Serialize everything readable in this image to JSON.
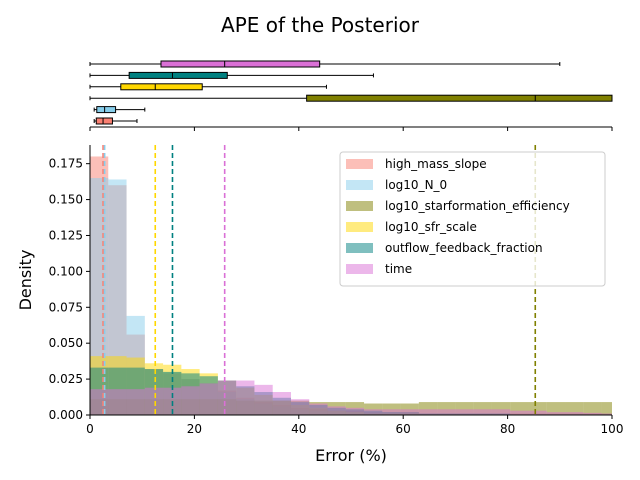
{
  "chart_data": {
    "type": "histogram",
    "title": "APE of the Posterior",
    "xlabel": "Error (%)",
    "ylabel": "Density",
    "xlim": [
      0,
      100
    ],
    "ylim": [
      0,
      0.188
    ],
    "grid": false,
    "legend_position": "top-right",
    "bin_width": 3.5,
    "xticks": [
      "0",
      "20",
      "40",
      "60",
      "80",
      "100"
    ],
    "yticks": [
      "0.000",
      "0.025",
      "0.050",
      "0.075",
      "0.100",
      "0.125",
      "0.150",
      "0.175"
    ],
    "series": [
      {
        "name": "high_mass_slope",
        "color": "#fa8072",
        "median": 2.5,
        "box": {
          "whisker_low": 0.8,
          "q1": 1.2,
          "median": 2.5,
          "q3": 4.3,
          "whisker_high": 9.0
        },
        "density": [
          0.18,
          0.16,
          0.056,
          0.032,
          0.029,
          0.025,
          0.022,
          0.017,
          0.012,
          0.009,
          0.007,
          0.005,
          0.004,
          0.003,
          0.003,
          0.002,
          0.002,
          0.002,
          0.001,
          0.001,
          0.001,
          0.001,
          0.001,
          0.001,
          0.001,
          0.001,
          0.001,
          0.001,
          0.001
        ]
      },
      {
        "name": "log10_N_0",
        "color": "#87ceeb",
        "median": 2.8,
        "box": {
          "whisker_low": 0.8,
          "q1": 1.3,
          "median": 2.8,
          "q3": 4.9,
          "whisker_high": 10.5
        },
        "density": [
          0.165,
          0.164,
          0.069,
          0.032,
          0.03,
          0.025,
          0.022,
          0.016,
          0.011,
          0.008,
          0.006,
          0.004,
          0.003,
          0.003,
          0.002,
          0.002,
          0.002,
          0.001,
          0.001,
          0.001,
          0.001,
          0.001,
          0.001,
          0.001,
          0.001,
          0.001,
          0.001,
          0.001,
          0.001
        ]
      },
      {
        "name": "log10_starformation_efficiency",
        "color": "#808000",
        "median": 85.3,
        "box": {
          "whisker_low": 0.0,
          "q1": 41.5,
          "median": 85.3,
          "q3": 100.0,
          "whisker_high": 100.0
        },
        "density": [
          0.011,
          0.011,
          0.011,
          0.011,
          0.011,
          0.011,
          0.011,
          0.011,
          0.01,
          0.01,
          0.01,
          0.01,
          0.009,
          0.009,
          0.009,
          0.008,
          0.008,
          0.008,
          0.009,
          0.009,
          0.009,
          0.009,
          0.009,
          0.009,
          0.009,
          0.009,
          0.009,
          0.009,
          0.009
        ]
      },
      {
        "name": "log10_sfr_scale",
        "color": "#ffd700",
        "median": 12.5,
        "box": {
          "whisker_low": 0.0,
          "q1": 5.9,
          "median": 12.5,
          "q3": 21.5,
          "whisker_high": 45.3
        },
        "density": [
          0.041,
          0.041,
          0.04,
          0.036,
          0.035,
          0.032,
          0.029,
          0.024,
          0.019,
          0.014,
          0.01,
          0.007,
          0.005,
          0.003,
          0.002,
          0.001,
          0.001,
          0.001,
          0.0005,
          0.0005,
          0.0005,
          0.0005,
          0.0005,
          0.0005,
          0.0005,
          0.0005,
          0.0005,
          0.0005,
          0.0005
        ]
      },
      {
        "name": "outflow_feedback_fraction",
        "color": "#008080",
        "median": 15.8,
        "box": {
          "whisker_low": 0.0,
          "q1": 7.5,
          "median": 15.8,
          "q3": 26.3,
          "whisker_high": 54.3
        },
        "density": [
          0.033,
          0.033,
          0.033,
          0.032,
          0.03,
          0.029,
          0.027,
          0.024,
          0.02,
          0.016,
          0.012,
          0.009,
          0.007,
          0.005,
          0.004,
          0.003,
          0.002,
          0.002,
          0.001,
          0.001,
          0.001,
          0.001,
          0.001,
          0.0005,
          0.0005,
          0.0005,
          0.0005,
          0.0005,
          0.0005
        ]
      },
      {
        "name": "time",
        "color": "#da70d6",
        "median": 25.8,
        "box": {
          "whisker_low": 0.0,
          "q1": 13.6,
          "median": 25.8,
          "q3": 44.0,
          "whisker_high": 90.0
        },
        "density": [
          0.018,
          0.018,
          0.018,
          0.019,
          0.019,
          0.02,
          0.022,
          0.024,
          0.024,
          0.021,
          0.016,
          0.011,
          0.008,
          0.006,
          0.005,
          0.004,
          0.004,
          0.004,
          0.004,
          0.004,
          0.004,
          0.004,
          0.004,
          0.003,
          0.003,
          0.002,
          0.002,
          0.0015,
          0.001
        ]
      }
    ]
  }
}
